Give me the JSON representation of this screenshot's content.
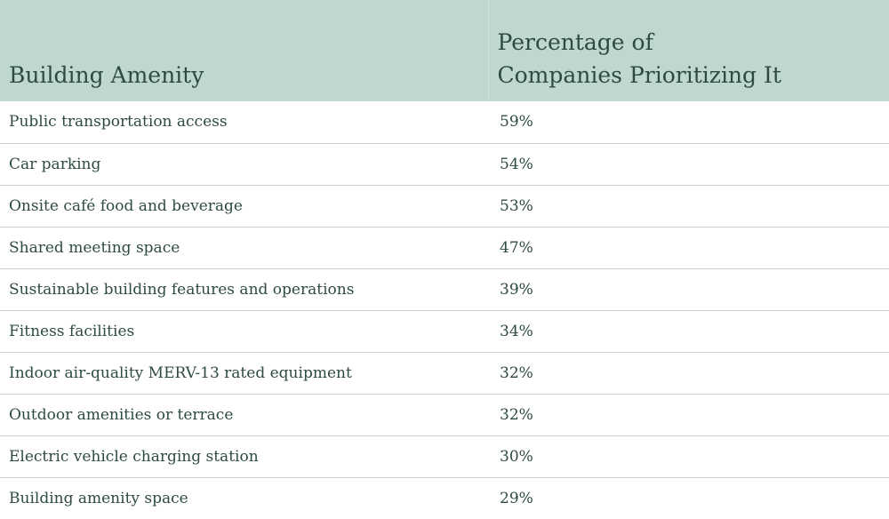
{
  "header": {
    "amenity": "Building Amenity",
    "percentage_line1": "Percentage of",
    "percentage_line2": "Companies Prioritizing It"
  },
  "rows": [
    {
      "amenity": "Public transportation access",
      "percentage": "59%"
    },
    {
      "amenity": "Car parking",
      "percentage": "54%"
    },
    {
      "amenity": "Onsite café food and beverage",
      "percentage": "53%"
    },
    {
      "amenity": "Shared meeting space",
      "percentage": "47%"
    },
    {
      "amenity": "Sustainable building features and operations",
      "percentage": "39%"
    },
    {
      "amenity": "Fitness facilities",
      "percentage": "34%"
    },
    {
      "amenity": "Indoor air-quality MERV-13 rated equipment",
      "percentage": "32%"
    },
    {
      "amenity": "Outdoor amenities or terrace",
      "percentage": "32%"
    },
    {
      "amenity": "Electric vehicle charging station",
      "percentage": "30%"
    },
    {
      "amenity": "Building amenity space",
      "percentage": "29%"
    }
  ],
  "colors": {
    "header_bg": "#bfd7cc",
    "text": "#2e4a45",
    "row_divider": "#cfcfcf"
  }
}
